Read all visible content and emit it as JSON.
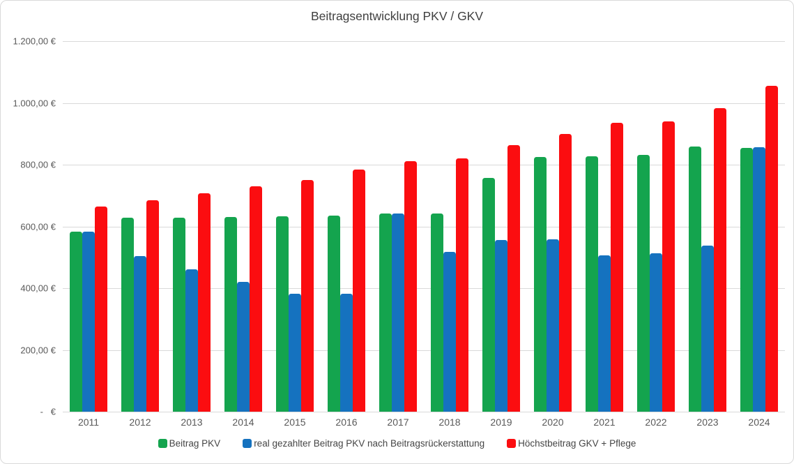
{
  "chart_data": {
    "type": "bar",
    "title": "Beitragsentwicklung PKV / GKV",
    "categories": [
      "2011",
      "2012",
      "2013",
      "2014",
      "2015",
      "2016",
      "2017",
      "2018",
      "2019",
      "2020",
      "2021",
      "2022",
      "2023",
      "2024"
    ],
    "series": [
      {
        "name": "Beitrag PKV",
        "color": "#14A44E",
        "values": [
          583,
          628,
          629,
          631,
          633,
          634,
          642,
          642,
          757,
          826,
          827,
          831,
          858,
          855
        ]
      },
      {
        "name": "real gezahlter Beitrag PKV nach Beitragsrückerstattung",
        "color": "#1572BF",
        "values": [
          583,
          503,
          461,
          421,
          382,
          381,
          642,
          517,
          557,
          559,
          507,
          512,
          538,
          857
        ]
      },
      {
        "name": "Höchstbeitrag GKV + Pflege",
        "color": "#FB0D10",
        "values": [
          665,
          684,
          708,
          729,
          750,
          784,
          812,
          820,
          864,
          899,
          936,
          940,
          984,
          1056
        ]
      }
    ],
    "ylim": [
      0,
      1200
    ],
    "ytick_step": 200,
    "ytick_labels": [
      "1.200,00 €",
      "1.000,00 €",
      "800,00 €",
      "600,00 €",
      "400,00 €",
      "200,00 €",
      "-   €"
    ],
    "grid": true,
    "legend_position": "bottom",
    "gridline_color": "#D9D9D9",
    "axis_text_color": "#595959",
    "title_color": "#404040"
  }
}
